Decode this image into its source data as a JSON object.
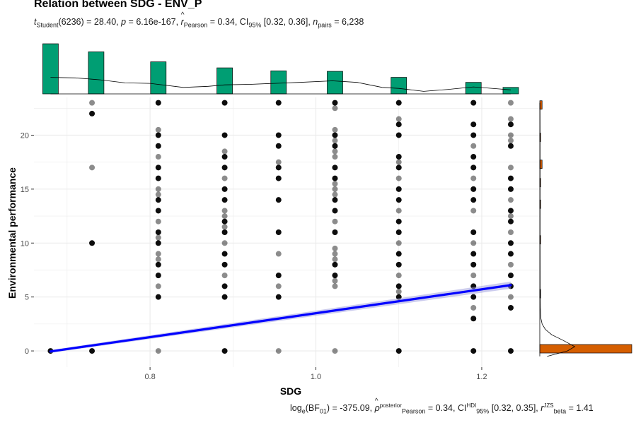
{
  "title": "Relation between SDG - ENV_P",
  "subtitle": {
    "t_label": "t",
    "t_sub": "Student",
    "t_rest": "(6236) = 28.40, ",
    "p_label": "p",
    "p_rest": " = 6.16e-167, ",
    "r_label": "r",
    "r_sub": "Pearson",
    "r_rest": " = 0.34, CI",
    "ci_sub": "95%",
    "ci_rest": " [0.32, 0.36], ",
    "n_label": "n",
    "n_sub": "pairs",
    "n_rest": " = 6,238"
  },
  "caption": {
    "log_label": "log",
    "log_sub": "e",
    "bf_text": "(BF",
    "bf_sub": "01",
    "bf_rest": ") = -375.09, ",
    "rho_label": "ρ",
    "rho_sup": "posterior",
    "rho_sub": "Pearson",
    "rho_rest": " = 0.34, CI",
    "ci_sup": "HDI",
    "ci_sub": "95%",
    "ci_rest": " [0.32, 0.35], ",
    "r_label": "r",
    "r_sup": "JZS",
    "r_sub": "beta",
    "r_rest": " = 1.41"
  },
  "colors": {
    "top_hist": "#009E73",
    "right_hist": "#D55E00",
    "regression": "#0000FF",
    "points": "#000000",
    "grid": "#EBEBEB"
  },
  "chart_data": {
    "type": "scatter",
    "xlabel": "SDG",
    "ylabel": "Environmental performance",
    "xlim": [
      0.66,
      1.27
    ],
    "ylim": [
      -1.5,
      23.5
    ],
    "x_ticks": [
      0.8,
      1.0,
      1.2
    ],
    "x_tick_labels": [
      "0.8",
      "1.0",
      "1.2"
    ],
    "y_ticks": [
      0,
      5,
      10,
      15,
      20
    ],
    "y_tick_labels": [
      "0",
      "5",
      "10",
      "15",
      "20"
    ],
    "grid": true,
    "points": [
      {
        "x": 0.68,
        "y": [
          0
        ]
      },
      {
        "x": 0.73,
        "y": [
          0,
          10,
          17,
          22,
          23
        ]
      },
      {
        "x": 0.81,
        "y": [
          0,
          5,
          6,
          7,
          8,
          8.5,
          9,
          10,
          10.5,
          11,
          12,
          13,
          14,
          14.5,
          15,
          16,
          17,
          18,
          19,
          20,
          20.5,
          23
        ]
      },
      {
        "x": 0.89,
        "y": [
          0,
          5,
          6,
          7,
          8,
          9,
          10,
          11,
          11.5,
          12,
          12.5,
          13,
          14,
          15,
          16,
          17,
          18,
          18.5,
          20,
          23
        ]
      },
      {
        "x": 0.955,
        "y": [
          0,
          5,
          6,
          7,
          9,
          11,
          14,
          16,
          17,
          17.5,
          19,
          20,
          23
        ]
      },
      {
        "x": 1.023,
        "y": [
          0,
          6,
          6.5,
          7,
          8,
          8.5,
          9,
          9.5,
          11,
          12,
          13,
          14,
          14.5,
          15,
          15.5,
          16,
          17,
          18,
          18.5,
          19,
          19.5,
          20,
          20.5,
          22.5,
          23
        ]
      },
      {
        "x": 1.1,
        "y": [
          0,
          5,
          5.5,
          6,
          7,
          8,
          9,
          10,
          11,
          12,
          13,
          14,
          15,
          16,
          17,
          17.5,
          18,
          20,
          21,
          21.5,
          23
        ]
      },
      {
        "x": 1.19,
        "y": [
          0,
          3,
          4,
          5,
          6,
          7,
          8,
          9,
          10,
          11,
          13,
          14,
          15,
          16,
          17,
          18,
          19,
          20,
          21,
          23
        ]
      },
      {
        "x": 1.235,
        "y": [
          0,
          4,
          5,
          6,
          7,
          8,
          9,
          10,
          11,
          12,
          12.5,
          13,
          14,
          15,
          16,
          17,
          19,
          19.5,
          20,
          21,
          21.5,
          23
        ]
      }
    ],
    "regression": {
      "x": [
        0.68,
        1.235
      ],
      "y": [
        -0.05,
        6.1
      ]
    },
    "marginal_x": {
      "type": "histogram",
      "centers": [
        0.68,
        0.735,
        0.81,
        0.89,
        0.955,
        1.023,
        1.1,
        1.19,
        1.235
      ],
      "heights": [
        1.0,
        0.84,
        0.64,
        0.52,
        0.46,
        0.45,
        0.33,
        0.23,
        0.13
      ],
      "density_x": [
        0.68,
        0.71,
        0.74,
        0.77,
        0.8,
        0.84,
        0.87,
        0.89,
        0.92,
        0.95,
        0.98,
        1.02,
        1.05,
        1.08,
        1.1,
        1.13,
        1.16,
        1.19,
        1.22,
        1.235
      ],
      "density_y": [
        0.33,
        0.32,
        0.28,
        0.22,
        0.21,
        0.13,
        0.15,
        0.18,
        0.19,
        0.21,
        0.23,
        0.26,
        0.23,
        0.13,
        0.11,
        0.05,
        0.09,
        0.14,
        0.1,
        0.08
      ]
    },
    "marginal_y": {
      "type": "histogram",
      "bins": [
        {
          "y": 0.2,
          "count": 1.0
        },
        {
          "y": 5.3,
          "count": 0.004
        },
        {
          "y": 10.3,
          "count": 0.004
        },
        {
          "y": 13.6,
          "count": 0.004
        },
        {
          "y": 15.6,
          "count": 0.006
        },
        {
          "y": 17.3,
          "count": 0.025
        },
        {
          "y": 19.8,
          "count": 0.008
        },
        {
          "y": 22.8,
          "count": 0.025
        }
      ],
      "density_y": [
        -0.5,
        0,
        0.4,
        1,
        1.5,
        2,
        2.5,
        3,
        4,
        6,
        10,
        15,
        20,
        23
      ],
      "density_x": [
        0.08,
        0.3,
        0.38,
        0.25,
        0.13,
        0.06,
        0.025,
        0.012,
        0.006,
        0.004,
        0.003,
        0.003,
        0.003,
        0.002
      ]
    }
  }
}
